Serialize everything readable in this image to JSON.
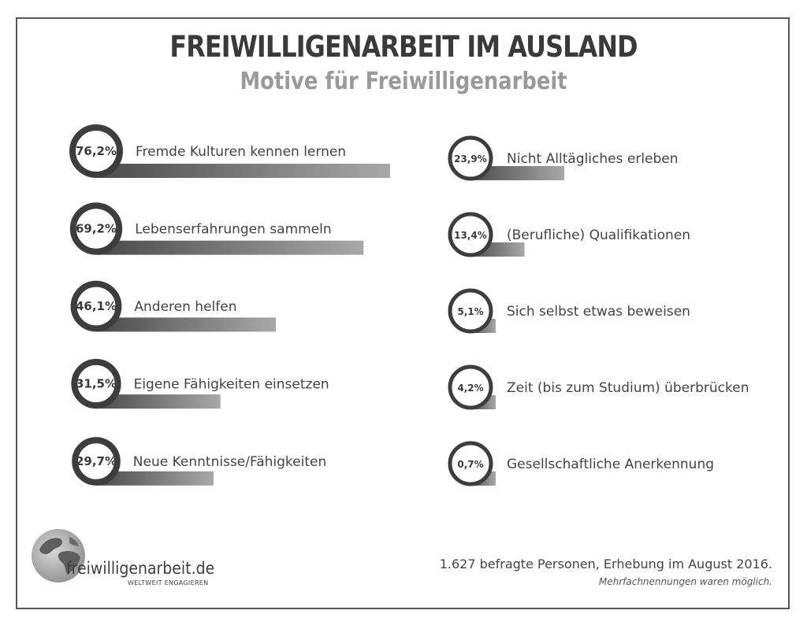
{
  "header": {
    "title": "FREIWILLIGENARBEIT IM AUSLAND",
    "subtitle": "Motive für Freiwilligenarbeit"
  },
  "chart_data": {
    "type": "bar",
    "title": "FREIWILLIGENARBEIT IM AUSLAND",
    "subtitle": "Motive für Freiwilligenarbeit",
    "unit": "%",
    "xlim": [
      0,
      100
    ],
    "grid": false,
    "categories": [
      "Fremde Kulturen kennen lernen",
      "Lebenserfahrungen sammeln",
      "Anderen helfen",
      "Eigene Fähigkeiten einsetzen",
      "Neue Kenntnisse/Fähigkeiten",
      "Nicht Alltägliches erleben",
      "(Berufliche) Qualifikationen",
      "Sich selbst etwas beweisen",
      "Zeit (bis zum Studium) überbrücken",
      "Gesellschaftliche Anerkennung"
    ],
    "values": [
      76.2,
      69.2,
      46.1,
      31.5,
      29.7,
      23.9,
      13.4,
      5.1,
      4.2,
      0.7
    ],
    "value_labels": [
      "76,2%",
      "69,2%",
      "46,1%",
      "31,5%",
      "29,7%",
      "23,9%",
      "13,4%",
      "5,1%",
      "4,2%",
      "0,7%"
    ]
  },
  "footer": {
    "logo_name": "freiwilligenarbeit.de",
    "logo_tagline": "WELTWEIT ENGAGIEREN",
    "note": "1.627 befragte Personen, Erhebung im August 2016.",
    "note_sub": "Mehrfachnennungen waren möglich."
  },
  "colors": {
    "ring": "#3d3d3d",
    "bar_dark": "#4a4a4a",
    "bar_light": "#a8a8a8",
    "title": "#3a3a3a",
    "subtitle": "#9a9a9a",
    "frame": "#555555"
  }
}
